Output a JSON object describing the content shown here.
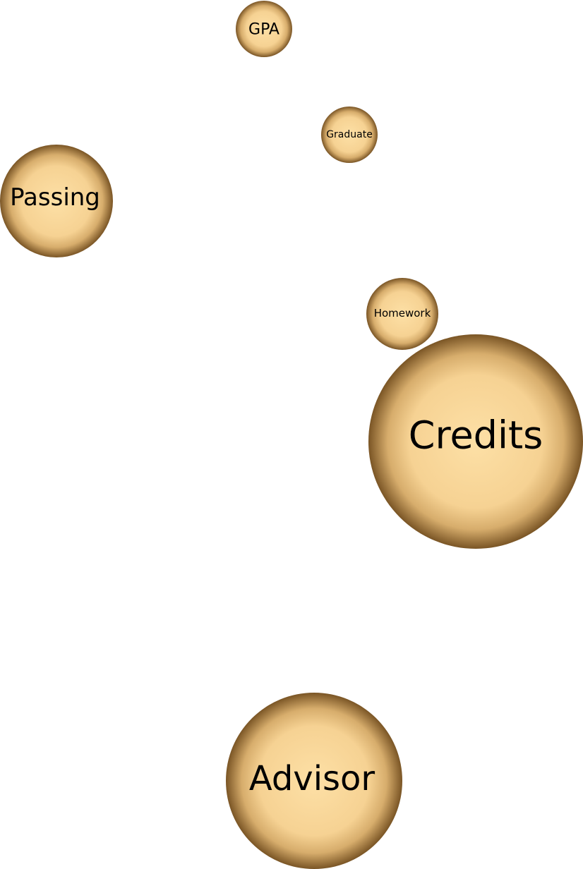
{
  "colors": {
    "bubble_center": "#fde0a6",
    "bubble_mid": "#f4cf90",
    "bubble_edge": "#7a5525",
    "label": "#000000"
  },
  "bubbles": [
    {
      "id": "gpa",
      "label": "GPA"
    },
    {
      "id": "graduate",
      "label": "Graduate"
    },
    {
      "id": "passing",
      "label": "Passing"
    },
    {
      "id": "homework",
      "label": "Homework"
    },
    {
      "id": "credits",
      "label": "Credits"
    },
    {
      "id": "advisor",
      "label": "Advisor"
    }
  ]
}
